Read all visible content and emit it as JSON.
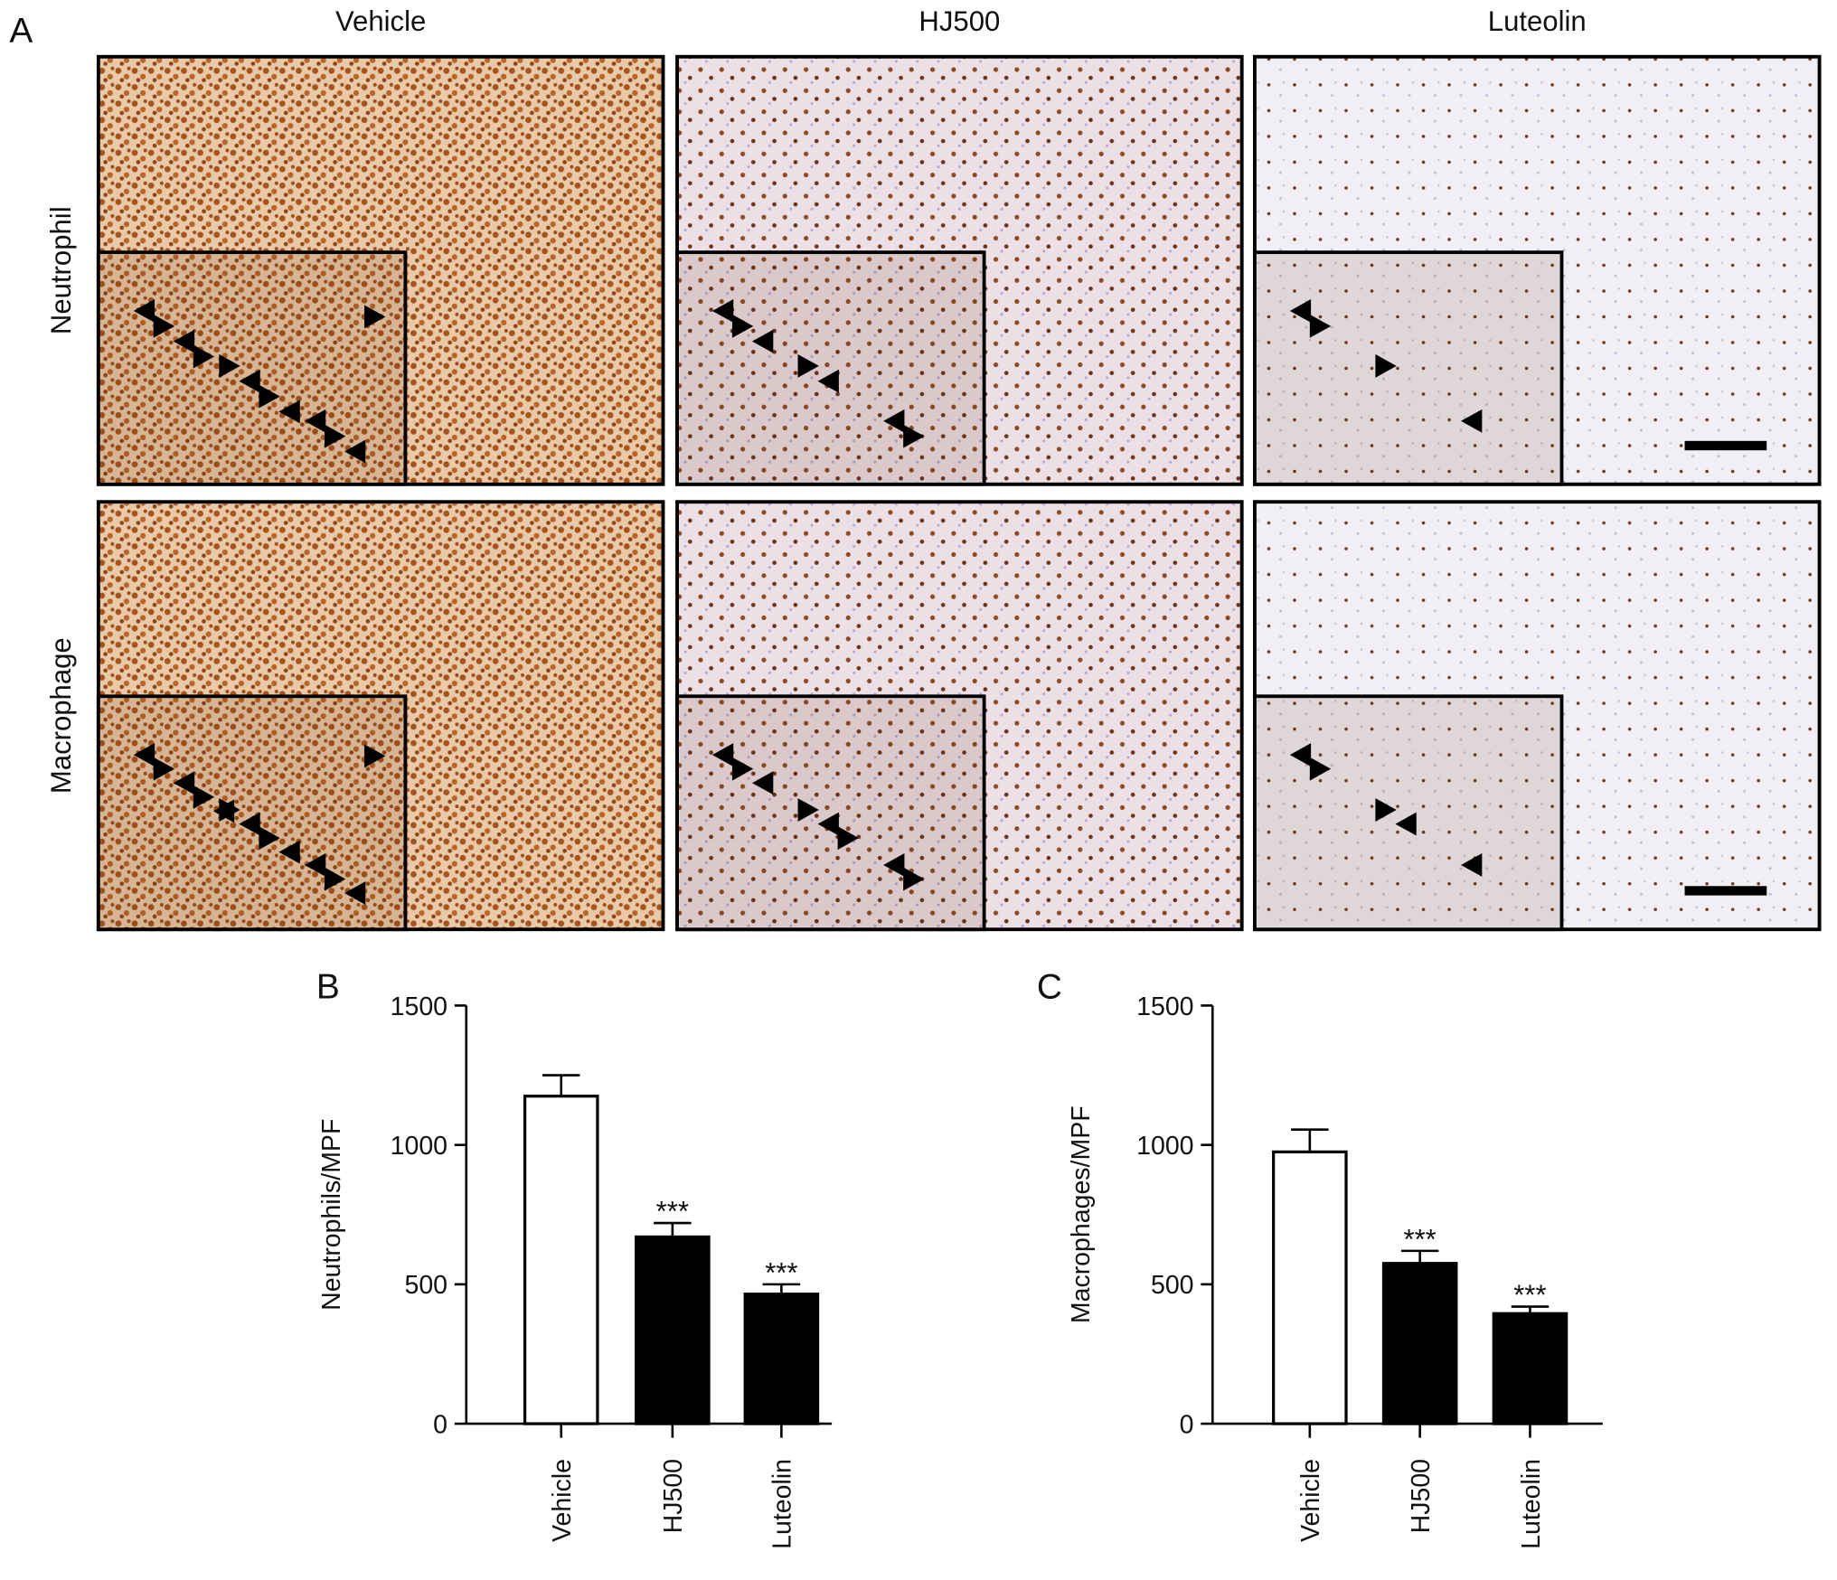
{
  "panel_a": {
    "label": "A",
    "columns": [
      "Vehicle",
      "HJ500",
      "Luteolin"
    ],
    "rows": [
      "Neutrophil",
      "Macrophage"
    ]
  },
  "chart_data": [
    {
      "type": "bar",
      "panel_label": "B",
      "y_label": "Neutrophils/MPF",
      "categories": [
        "Vehicle",
        "HJ500",
        "Luteolin"
      ],
      "values": [
        1175,
        670,
        465
      ],
      "errors": [
        75,
        50,
        35
      ],
      "colors": [
        "#ffffff",
        "#000000",
        "#000000"
      ],
      "annotations": [
        null,
        "***",
        "***"
      ],
      "ylim": [
        0,
        1500
      ],
      "yticks": [
        0,
        500,
        1000,
        1500
      ]
    },
    {
      "type": "bar",
      "panel_label": "C",
      "y_label": "Macrophages/MPF",
      "categories": [
        "Vehicle",
        "HJ500",
        "Luteolin"
      ],
      "values": [
        975,
        575,
        395
      ],
      "errors": [
        80,
        45,
        25
      ],
      "colors": [
        "#ffffff",
        "#000000",
        "#000000"
      ],
      "annotations": [
        null,
        "***",
        "***"
      ],
      "ylim": [
        0,
        1500
      ],
      "yticks": [
        0,
        500,
        1000,
        1500
      ]
    }
  ]
}
